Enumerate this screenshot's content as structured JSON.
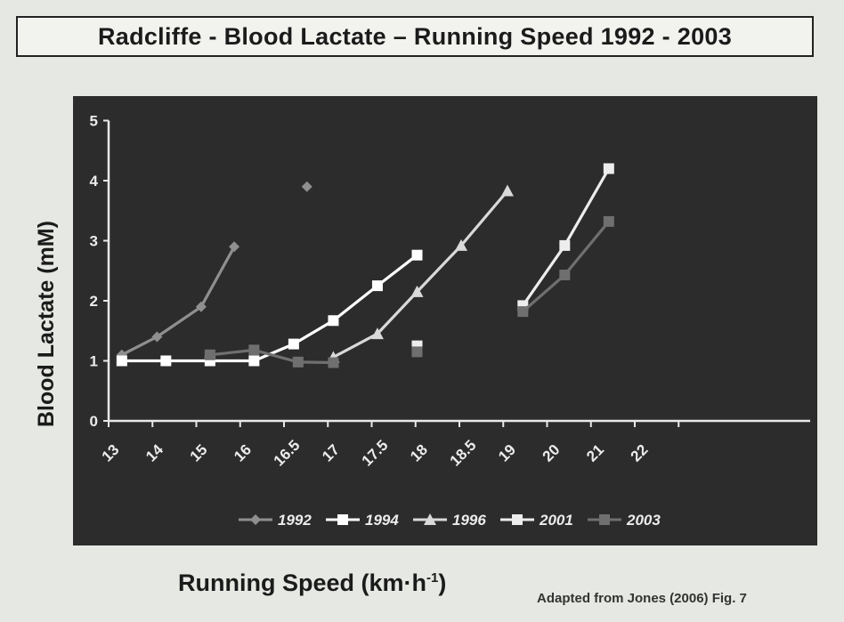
{
  "header": {
    "title": "Radcliffe - Blood Lactate – Running Speed  1992 - 2003"
  },
  "axes": {
    "ylabel": "Blood Lactate (mM)",
    "xlabel_main": "Running Speed (km·h",
    "xlabel_sup": "-1",
    "xlabel_close": ")"
  },
  "credit": "Adapted from Jones (2006) Fig. 7",
  "chart_data": {
    "type": "line",
    "title": "Radcliffe - Blood Lactate – Running Speed  1992 - 2003",
    "xlabel": "Running Speed (km·h-1)",
    "ylabel": "Blood Lactate (mM)",
    "categories": [
      "13",
      "14",
      "15",
      "16",
      "16.5",
      "17",
      "17.5",
      "18",
      "18.5",
      "19",
      "20",
      "21",
      "22"
    ],
    "yticks": [
      0,
      1,
      2,
      3,
      4,
      5
    ],
    "ylim": [
      0,
      5
    ],
    "legend_position": "bottom",
    "grid": false,
    "series": [
      {
        "name": "1992",
        "marker": "diamond",
        "color": "#8f8f8f",
        "points": [
          [
            0.3,
            1.1
          ],
          [
            1.1,
            1.4
          ],
          [
            2.1,
            1.9
          ],
          [
            2.85,
            2.9
          ],
          [
            4.5,
            3.9
          ]
        ]
      },
      {
        "name": "1994",
        "marker": "square",
        "color": "#ffffff",
        "points": [
          [
            0.3,
            1.0
          ],
          [
            1.3,
            1.0
          ],
          [
            2.3,
            1.0
          ],
          [
            3.3,
            1.0
          ],
          [
            4.2,
            1.28
          ],
          [
            5.1,
            1.67
          ],
          [
            6.1,
            2.25
          ],
          [
            7.0,
            2.76
          ]
        ]
      },
      {
        "name": "1996",
        "marker": "triangle",
        "color": "#d9d9d9",
        "points": [
          [
            5.1,
            1.06
          ],
          [
            6.1,
            1.45
          ],
          [
            7.0,
            2.15
          ],
          [
            8.0,
            2.92
          ],
          [
            9.05,
            3.83
          ]
        ]
      },
      {
        "name": "2001",
        "marker": "square",
        "color": "#ededed",
        "points": [
          [
            7.0,
            1.25
          ],
          [
            9.4,
            1.92
          ],
          [
            10.35,
            2.92
          ],
          [
            11.35,
            4.2
          ]
        ]
      },
      {
        "name": "2003",
        "marker": "square",
        "color": "#6f6f6f",
        "points": [
          [
            2.3,
            1.1
          ],
          [
            3.3,
            1.18
          ],
          [
            4.3,
            0.98
          ],
          [
            5.1,
            0.97
          ],
          [
            7.0,
            1.15
          ],
          [
            9.4,
            1.82
          ],
          [
            10.35,
            2.43
          ],
          [
            11.35,
            3.32
          ]
        ]
      }
    ]
  }
}
